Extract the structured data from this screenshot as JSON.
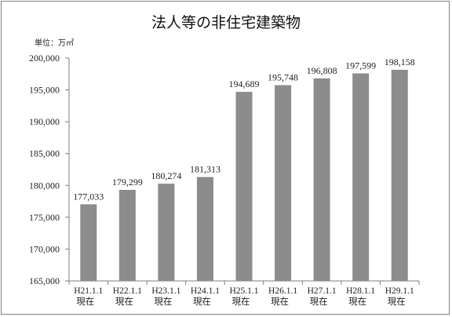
{
  "chart_data": {
    "type": "bar",
    "title": "法人等の非住宅建築物",
    "unit_label": "単位：万㎡",
    "categories": [
      [
        "H21.1.1",
        "現在"
      ],
      [
        "H22.1.1",
        "現在"
      ],
      [
        "H23.1.1",
        "現在"
      ],
      [
        "H24.1.1",
        "現在"
      ],
      [
        "H25.1.1",
        "現在"
      ],
      [
        "H26.1.1",
        "現在"
      ],
      [
        "H27.1.1",
        "現在"
      ],
      [
        "H28.1.1",
        "現在"
      ],
      [
        "H29.1.1",
        "現在"
      ]
    ],
    "values": [
      177033,
      179299,
      180274,
      181313,
      194689,
      195748,
      196808,
      197599,
      198158
    ],
    "value_labels": [
      "177,033",
      "179,299",
      "180,274",
      "181,313",
      "194,689",
      "195,748",
      "196,808",
      "197,599",
      "198,158"
    ],
    "ylim": [
      165000,
      200000
    ],
    "yticks": [
      165000,
      170000,
      175000,
      180000,
      185000,
      190000,
      195000,
      200000
    ],
    "ytick_labels": [
      "165,000",
      "170,000",
      "175,000",
      "180,000",
      "185,000",
      "190,000",
      "195,000",
      "200,000"
    ],
    "grid": false,
    "bar_color": "#8c8c8c"
  }
}
